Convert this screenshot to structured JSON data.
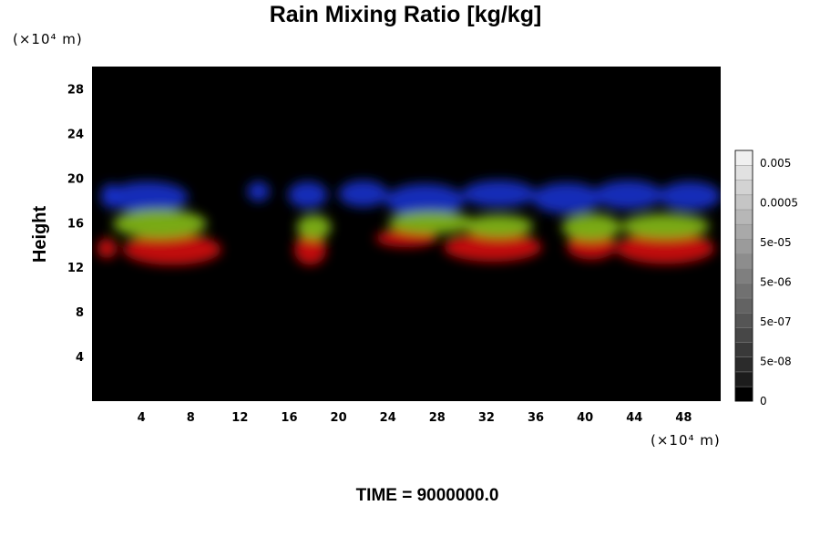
{
  "chart_data": {
    "type": "heatmap",
    "title": "Rain Mixing Ratio [kg/kg]",
    "ylabel": "Height",
    "x_unit": "(×10⁴ m)",
    "y_unit": "(×10⁴ m)",
    "xlim": [
      0,
      51
    ],
    "ylim": [
      0,
      30
    ],
    "x_ticks": [
      4,
      8,
      12,
      16,
      20,
      24,
      28,
      32,
      36,
      40,
      44,
      48
    ],
    "y_ticks": [
      4,
      8,
      12,
      16,
      20,
      24,
      28
    ],
    "colorbar": {
      "labels": [
        "0.005",
        "0.0005",
        "5e-05",
        "5e-06",
        "5e-07",
        "5e-08",
        "0"
      ],
      "colors": [
        "#000000",
        "#1c1c1c",
        "#2b2b2b",
        "#393939",
        "#474747",
        "#555555",
        "#636363",
        "#717171",
        "#7f7f7f",
        "#8d8d8d",
        "#9b9b9b",
        "#a9a9a9",
        "#b7b7b7",
        "#c5c5c5",
        "#d3d3d3",
        "#e1e1e1",
        "#f0f0f0"
      ]
    },
    "layers": [
      {
        "color": "#1a2fc8",
        "blobs": [
          {
            "x": 1.5,
            "y": 18.4,
            "rx": 0.8,
            "ry": 1.1
          },
          {
            "x": 4.5,
            "y": 18.3,
            "rx": 3.3,
            "ry": 1.4
          },
          {
            "x": 13.5,
            "y": 18.8,
            "rx": 0.9,
            "ry": 0.9
          },
          {
            "x": 17.5,
            "y": 18.5,
            "rx": 1.6,
            "ry": 1.2
          },
          {
            "x": 22.0,
            "y": 18.6,
            "rx": 2.0,
            "ry": 1.2
          },
          {
            "x": 27.0,
            "y": 18.0,
            "rx": 3.2,
            "ry": 1.5
          },
          {
            "x": 33.0,
            "y": 18.6,
            "rx": 3.0,
            "ry": 1.2
          },
          {
            "x": 38.5,
            "y": 18.2,
            "rx": 2.8,
            "ry": 1.4
          },
          {
            "x": 43.5,
            "y": 18.5,
            "rx": 2.8,
            "ry": 1.3
          },
          {
            "x": 48.5,
            "y": 18.4,
            "rx": 2.5,
            "ry": 1.3
          }
        ]
      },
      {
        "color": "#d01010",
        "blobs": [
          {
            "x": 1.2,
            "y": 13.7,
            "rx": 0.8,
            "ry": 0.9
          },
          {
            "x": 6.5,
            "y": 13.6,
            "rx": 4.0,
            "ry": 1.4
          },
          {
            "x": 17.7,
            "y": 13.6,
            "rx": 1.3,
            "ry": 1.4
          },
          {
            "x": 25.5,
            "y": 14.6,
            "rx": 2.5,
            "ry": 0.8
          },
          {
            "x": 32.5,
            "y": 13.8,
            "rx": 4.0,
            "ry": 1.3
          },
          {
            "x": 40.5,
            "y": 13.9,
            "rx": 2.0,
            "ry": 1.2
          },
          {
            "x": 46.5,
            "y": 13.7,
            "rx": 4.0,
            "ry": 1.4
          }
        ]
      },
      {
        "color": "#82b818",
        "blobs": [
          {
            "x": 5.5,
            "y": 15.9,
            "rx": 3.8,
            "ry": 1.3
          },
          {
            "x": 18.0,
            "y": 15.6,
            "rx": 1.4,
            "ry": 1.1
          },
          {
            "x": 27.5,
            "y": 16.0,
            "rx": 3.5,
            "ry": 1.0
          },
          {
            "x": 33.0,
            "y": 15.7,
            "rx": 2.8,
            "ry": 1.0
          },
          {
            "x": 40.5,
            "y": 15.6,
            "rx": 2.4,
            "ry": 1.2
          },
          {
            "x": 46.5,
            "y": 15.7,
            "rx": 3.6,
            "ry": 1.1
          }
        ]
      }
    ]
  },
  "footer": {
    "time_label": "TIME = 9000000.0"
  }
}
